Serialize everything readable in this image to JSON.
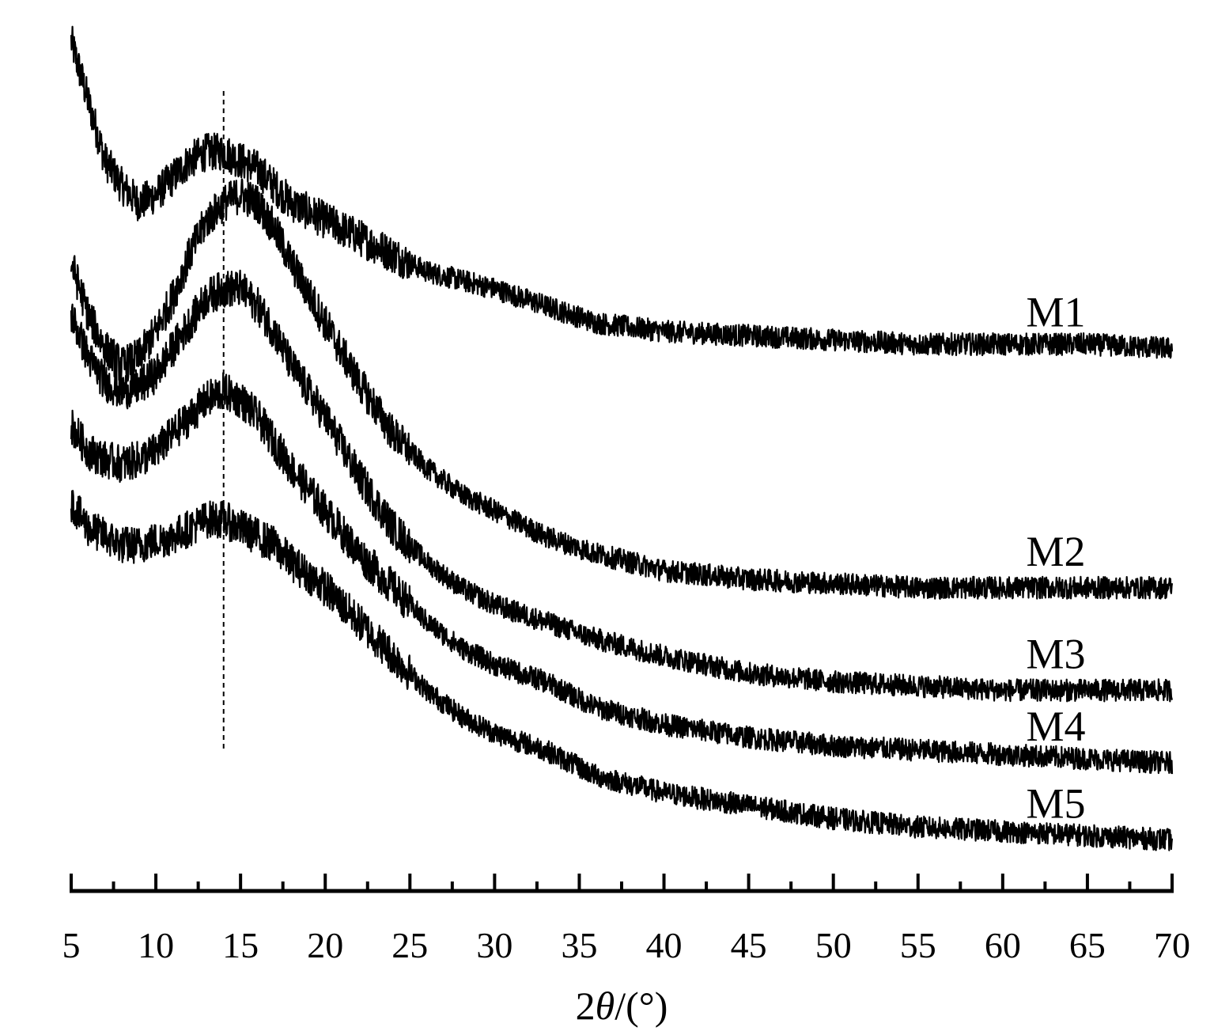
{
  "chart_data": {
    "type": "line",
    "xlabel": "2θ/(°)",
    "xlabel_prefix": "2",
    "xlabel_theta": "θ",
    "xlabel_suffix": "/(°)",
    "xlim": [
      5,
      70
    ],
    "xticks_major": [
      5,
      10,
      15,
      20,
      25,
      30,
      35,
      40,
      45,
      50,
      55,
      60,
      65,
      70
    ],
    "xticks_minor_step": 2.5,
    "y_axis_shown": false,
    "grid": false,
    "reference_line_x": 14,
    "series": [
      {
        "name": "M1",
        "x": [
          5,
          6,
          7,
          8,
          9,
          10,
          11,
          12,
          13,
          14,
          15,
          16,
          17,
          18,
          20,
          22,
          24,
          26,
          28,
          30,
          33,
          36,
          40,
          45,
          50,
          55,
          60,
          65,
          70
        ],
        "y": [
          0.98,
          0.91,
          0.84,
          0.81,
          0.79,
          0.8,
          0.82,
          0.84,
          0.85,
          0.85,
          0.84,
          0.83,
          0.81,
          0.79,
          0.77,
          0.75,
          0.73,
          0.71,
          0.7,
          0.69,
          0.67,
          0.65,
          0.64,
          0.635,
          0.63,
          0.625,
          0.625,
          0.625,
          0.62
        ]
      },
      {
        "name": "M2",
        "x": [
          5,
          6,
          7,
          8,
          9,
          10,
          11,
          12,
          13,
          14,
          15,
          16,
          17,
          18,
          20,
          22,
          24,
          26,
          28,
          30,
          33,
          36,
          40,
          45,
          50,
          55,
          60,
          65,
          70
        ],
        "y": [
          0.72,
          0.66,
          0.62,
          0.6,
          0.61,
          0.64,
          0.68,
          0.73,
          0.77,
          0.79,
          0.8,
          0.79,
          0.76,
          0.72,
          0.65,
          0.58,
          0.52,
          0.48,
          0.45,
          0.43,
          0.4,
          0.38,
          0.36,
          0.35,
          0.345,
          0.34,
          0.34,
          0.34,
          0.34
        ]
      },
      {
        "name": "M3",
        "x": [
          5,
          6,
          7,
          8,
          9,
          10,
          11,
          12,
          13,
          14,
          15,
          16,
          17,
          18,
          20,
          22,
          24,
          26,
          28,
          30,
          33,
          36,
          40,
          45,
          50,
          55,
          60,
          65,
          70
        ],
        "y": [
          0.66,
          0.61,
          0.58,
          0.57,
          0.575,
          0.59,
          0.62,
          0.65,
          0.68,
          0.69,
          0.69,
          0.67,
          0.64,
          0.6,
          0.54,
          0.47,
          0.41,
          0.37,
          0.34,
          0.32,
          0.3,
          0.28,
          0.26,
          0.24,
          0.23,
          0.225,
          0.22,
          0.22,
          0.22
        ]
      },
      {
        "name": "M4",
        "x": [
          5,
          6,
          7,
          8,
          9,
          10,
          11,
          12,
          13,
          14,
          15,
          16,
          17,
          18,
          20,
          22,
          24,
          26,
          28,
          30,
          33,
          36,
          40,
          45,
          50,
          55,
          60,
          65,
          70
        ],
        "y": [
          0.53,
          0.5,
          0.49,
          0.485,
          0.49,
          0.5,
          0.52,
          0.54,
          0.56,
          0.57,
          0.56,
          0.54,
          0.51,
          0.48,
          0.43,
          0.38,
          0.34,
          0.3,
          0.27,
          0.25,
          0.23,
          0.2,
          0.18,
          0.165,
          0.155,
          0.15,
          0.145,
          0.14,
          0.135
        ]
      },
      {
        "name": "M5",
        "x": [
          5,
          6,
          7,
          8,
          9,
          10,
          11,
          12,
          13,
          14,
          15,
          16,
          17,
          18,
          20,
          22,
          24,
          26,
          28,
          30,
          33,
          36,
          40,
          45,
          50,
          55,
          60,
          65,
          70
        ],
        "y": [
          0.44,
          0.41,
          0.4,
          0.39,
          0.39,
          0.395,
          0.4,
          0.41,
          0.42,
          0.42,
          0.41,
          0.4,
          0.39,
          0.37,
          0.34,
          0.3,
          0.26,
          0.22,
          0.19,
          0.17,
          0.15,
          0.12,
          0.1,
          0.085,
          0.07,
          0.06,
          0.055,
          0.05,
          0.045
        ]
      }
    ]
  }
}
